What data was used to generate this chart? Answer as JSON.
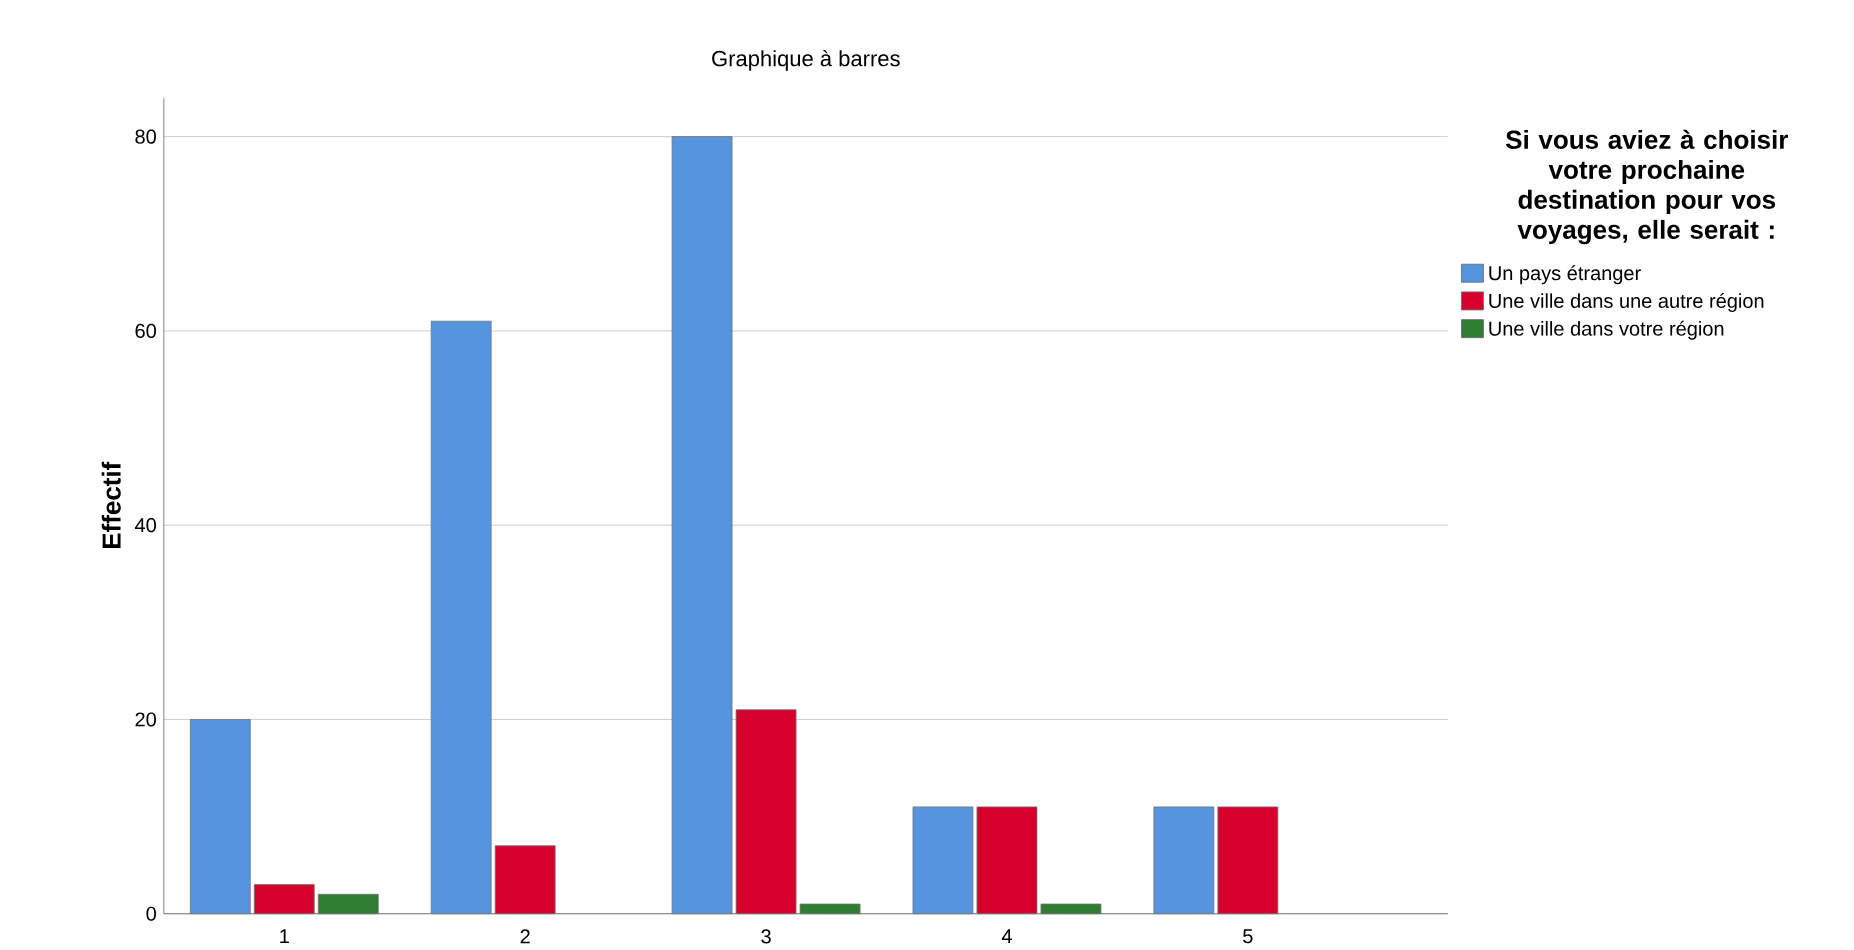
{
  "chart_data": {
    "type": "bar",
    "title": "Graphique à barres",
    "ylabel": "Effectif",
    "legend_title": "Si vous aviez à choisir votre prochaine destination pour vos voyages, elle serait :",
    "categories": [
      "1",
      "2",
      "3",
      "4",
      "5"
    ],
    "series": [
      {
        "name": "Un pays étranger",
        "color": "#5595e0",
        "values": [
          20,
          61,
          80,
          11,
          11
        ]
      },
      {
        "name": "Une ville dans une autre région",
        "color": "#d6002c",
        "values": [
          3,
          7,
          21,
          11,
          11
        ]
      },
      {
        "name": "Une ville dans votre région",
        "color": "#2e7d32",
        "values": [
          2,
          null,
          1,
          1,
          null
        ]
      }
    ],
    "ylim": [
      0,
      84
    ],
    "yticks": [
      0,
      20,
      40,
      60,
      80
    ],
    "grid": "y",
    "legend": "top right"
  }
}
